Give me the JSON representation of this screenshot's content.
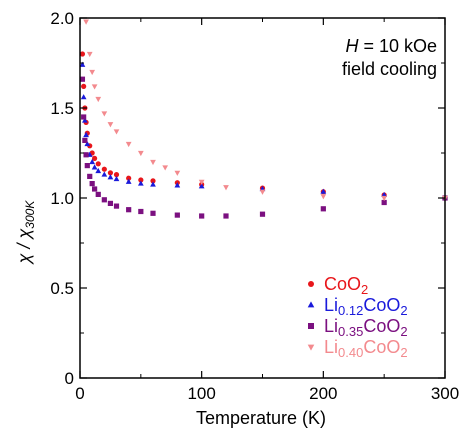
{
  "chart_data": {
    "type": "scatter",
    "title": "",
    "xlabel": "Temperature (K)",
    "ylabel": {
      "main": "χ / χ",
      "sub": "300K"
    },
    "xlim": [
      0,
      300
    ],
    "ylim": [
      0,
      2.0
    ],
    "xticks": [
      {
        "value": 0,
        "label": "0"
      },
      {
        "value": 100,
        "label": "100"
      },
      {
        "value": 200,
        "label": "200"
      },
      {
        "value": 300,
        "label": "300"
      }
    ],
    "yticks": [
      {
        "value": 0,
        "label": "0"
      },
      {
        "value": 0.5,
        "label": "0.5"
      },
      {
        "value": 1.0,
        "label": "1.0"
      },
      {
        "value": 1.5,
        "label": "1.5"
      },
      {
        "value": 2.0,
        "label": "2.0"
      }
    ],
    "grid": false,
    "legend_position": "bottom-right",
    "annotation": {
      "line1_italic": "H",
      "line1_rest": " = 10 kOe",
      "line2": "field cooling"
    },
    "series": [
      {
        "name": "CoO2",
        "label_parts": [
          {
            "t": "CoO"
          },
          {
            "t": "2",
            "sub": true
          }
        ],
        "color": "#e8161b",
        "marker": "circle",
        "x": [
          2,
          3,
          4,
          5,
          6,
          8,
          10,
          12,
          15,
          20,
          25,
          30,
          40,
          50,
          60,
          80,
          100,
          150,
          200,
          250,
          300
        ],
        "y": [
          1.8,
          1.62,
          1.5,
          1.42,
          1.36,
          1.29,
          1.25,
          1.22,
          1.19,
          1.16,
          1.14,
          1.13,
          1.11,
          1.1,
          1.095,
          1.085,
          1.075,
          1.055,
          1.035,
          1.017,
          1.0
        ]
      },
      {
        "name": "Li0.12CoO2",
        "label_parts": [
          {
            "t": "Li"
          },
          {
            "t": "0.12",
            "sub": true
          },
          {
            "t": "CoO"
          },
          {
            "t": "2",
            "sub": true
          }
        ],
        "color": "#1a1adb",
        "marker": "triangle",
        "x": [
          2,
          3,
          4,
          5,
          6,
          8,
          10,
          12,
          15,
          20,
          25,
          30,
          40,
          50,
          60,
          80,
          100,
          150,
          200,
          250,
          300
        ],
        "y": [
          1.74,
          1.56,
          1.43,
          1.35,
          1.3,
          1.24,
          1.2,
          1.17,
          1.15,
          1.13,
          1.115,
          1.105,
          1.09,
          1.08,
          1.075,
          1.07,
          1.065,
          1.05,
          1.035,
          1.017,
          1.0
        ]
      },
      {
        "name": "Li0.35CoO2",
        "label_parts": [
          {
            "t": "Li"
          },
          {
            "t": "0.35",
            "sub": true
          },
          {
            "t": "CoO"
          },
          {
            "t": "2",
            "sub": true
          }
        ],
        "color": "#7b1080",
        "marker": "square",
        "x": [
          2,
          3,
          4,
          5,
          6,
          8,
          10,
          12,
          15,
          20,
          25,
          30,
          40,
          50,
          60,
          80,
          100,
          120,
          150,
          200,
          250,
          300
        ],
        "y": [
          1.66,
          1.45,
          1.32,
          1.24,
          1.18,
          1.12,
          1.08,
          1.05,
          1.02,
          0.99,
          0.97,
          0.955,
          0.935,
          0.925,
          0.915,
          0.905,
          0.9,
          0.9,
          0.91,
          0.94,
          0.975,
          1.0
        ]
      },
      {
        "name": "Li0.40CoO2",
        "label_parts": [
          {
            "t": "Li"
          },
          {
            "t": "0.40",
            "sub": true
          },
          {
            "t": "CoO"
          },
          {
            "t": "2",
            "sub": true
          }
        ],
        "color": "#f38a8e",
        "marker": "triangle-down",
        "x": [
          5,
          8,
          10,
          12,
          15,
          20,
          25,
          30,
          40,
          50,
          60,
          70,
          80,
          100,
          120,
          150,
          200,
          250,
          300
        ],
        "y": [
          1.98,
          1.8,
          1.7,
          1.62,
          1.55,
          1.47,
          1.41,
          1.37,
          1.3,
          1.25,
          1.2,
          1.17,
          1.14,
          1.09,
          1.06,
          1.035,
          1.01,
          1.0,
          1.0
        ]
      }
    ]
  }
}
